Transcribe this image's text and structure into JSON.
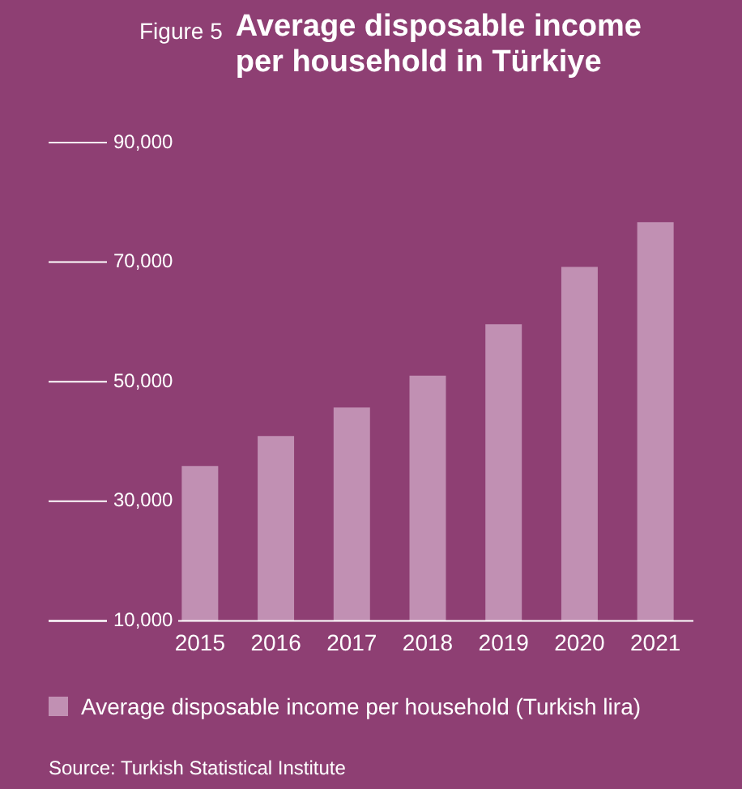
{
  "chart_data": {
    "type": "bar",
    "title": "Average disposable income per household in Türkiye",
    "categories": [
      "2015",
      "2016",
      "2017",
      "2018",
      "2019",
      "2020",
      "2021"
    ],
    "series": [
      {
        "name": "Average disposable income per household (Turkish lira)",
        "color": "#c190b3",
        "values": [
          35900,
          40900,
          45700,
          51000,
          59600,
          69200,
          76700
        ]
      }
    ],
    "ylim": [
      10000,
      90000
    ],
    "yticks": [
      {
        "value": 10000,
        "label": "10,000"
      },
      {
        "value": 30000,
        "label": "30,000"
      },
      {
        "value": 50000,
        "label": "50,000"
      },
      {
        "value": 70000,
        "label": "70,000"
      },
      {
        "value": 90000,
        "label": "90,000"
      }
    ],
    "grid": false,
    "legend": "bottom",
    "annotations": [
      "Figure 5",
      "Source: Turkish Statistical Institute"
    ]
  }
}
